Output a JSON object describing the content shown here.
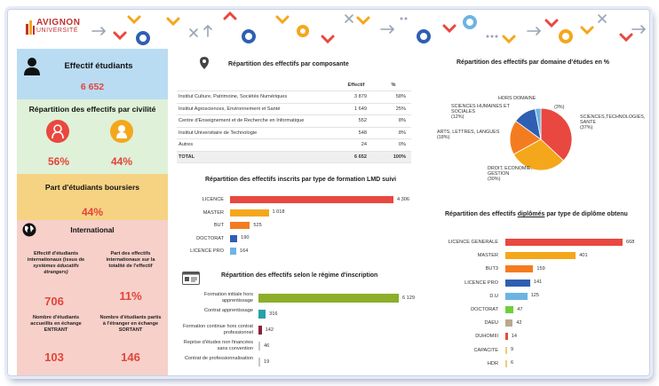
{
  "logo": {
    "name": "AVIGNON",
    "subname": "UNIVERSITÉ"
  },
  "left": {
    "effectif_title": "Effectif étudiants",
    "effectif_value": "6 652",
    "civilite_title": "Répartition des effectifs par civilité",
    "female_pct": "56%",
    "male_pct": "44%",
    "boursiers_title": "Part d'étudiants boursiers",
    "boursiers_pct": "44%",
    "international_title": "International",
    "intl_effectif_label_1": "Effectif d'étudiants internationaux (issus de",
    "intl_effectif_label_2": "systèmes éducatifs étrangers)",
    "intl_effectif_value": "706",
    "intl_part_label": "Part des effectifs internationaux sur la totalité de l'effectif",
    "intl_part_value": "11%",
    "entrant_label": "Nombre d'étudiants accueillis en échange ENTRANT",
    "entrant_value": "103",
    "sortant_label": "Nombre d'étudiants partis à l'étranger en échange SORTANT",
    "sortant_value": "146"
  },
  "composante": {
    "title": "Répartition des effectifs par composante",
    "headers": [
      "",
      "Effectif",
      "%"
    ],
    "rows": [
      [
        "Institut Culture, Patrimoine, Sociétés Numériques",
        "3 879",
        "58%"
      ],
      [
        "Institut Agrosciences, Environnement et Santé",
        "1 649",
        "25%"
      ],
      [
        "Centre d'Enseignement et de Recherche en Informatique",
        "552",
        "8%"
      ],
      [
        "Institut Universitaire de Technologie",
        "548",
        "8%"
      ],
      [
        "Autres",
        "24",
        "0%"
      ]
    ],
    "total": [
      "TOTAL",
      "6 652",
      "100%"
    ]
  },
  "lmd": {
    "title": "Répartition des effectifs inscrits par type de formation LMD suivi",
    "items": [
      {
        "label": "LICENCE",
        "value": 4306,
        "text": "4 306",
        "color": "#e8483f"
      },
      {
        "label": "MASTER",
        "value": 1018,
        "text": "1 018",
        "color": "#f4a71b"
      },
      {
        "label": "BUT",
        "value": 525,
        "text": "525",
        "color": "#f47c20"
      },
      {
        "label": "DOCTORAT",
        "value": 190,
        "text": "190",
        "color": "#2f5fb3"
      },
      {
        "label": "LICENCE PRO",
        "value": 164,
        "text": "164",
        "color": "#6cb4e4"
      }
    ]
  },
  "regime": {
    "title": "Répartition des effectifs selon le régime d'inscription",
    "items": [
      {
        "label": "Formation initiale hors apprentissage",
        "value": 6129,
        "text": "6 129",
        "color": "#8cae2a"
      },
      {
        "label": "Contrat apprentissage",
        "value": 316,
        "text": "316",
        "color": "#28a1a6"
      },
      {
        "label": "Formation continue hors contrat professionnel",
        "value": 142,
        "text": "142",
        "color": "#8e1f3c"
      },
      {
        "label": "Reprise d'études non financées sans convention",
        "value": 46,
        "text": "46",
        "color": "#c9c9c9"
      },
      {
        "label": "Contrat de professionnalisation",
        "value": 19,
        "text": "19",
        "color": "#c9c9c9"
      }
    ]
  },
  "domaine": {
    "title": "Répartition des effectifs par domaine d'études en %",
    "slices": [
      {
        "label": "SCIENCES,TECHNOLOGIES, SANTE",
        "pct": "(37%)",
        "value": 37,
        "color": "#e8483f"
      },
      {
        "label": "DROIT, ECONOMIE, GESTION",
        "pct": "(30%)",
        "value": 30,
        "color": "#f4a71b"
      },
      {
        "label": "ARTS, LETTRES, LANGUES",
        "pct": "(18%)",
        "value": 18,
        "color": "#f47c20"
      },
      {
        "label": "SCIENCES HUMAINES ET SOCIALES",
        "pct": "(12%)",
        "value": 12,
        "color": "#2f5fb3"
      },
      {
        "label": "HORS DOMAINE",
        "pct": "(3%)",
        "value": 3,
        "color": "#6cb4e4"
      }
    ]
  },
  "diplomes": {
    "title_1": "Répartition des effectifs ",
    "title_u": "diplômés",
    "title_2": " par type de diplôme obtenu",
    "items": [
      {
        "label": "LICENCE GENERALE",
        "value": 668,
        "text": "668",
        "color": "#e8483f"
      },
      {
        "label": "MASTER",
        "value": 401,
        "text": "401",
        "color": "#f4a71b"
      },
      {
        "label": "BUT3",
        "value": 159,
        "text": "159",
        "color": "#f47c20"
      },
      {
        "label": "LICENCE PRO",
        "value": 141,
        "text": "141",
        "color": "#2f5fb3"
      },
      {
        "label": "D.U",
        "value": 125,
        "text": "125",
        "color": "#6cb4e4"
      },
      {
        "label": "DOCTORAT",
        "value": 47,
        "text": "47",
        "color": "#6fcf3a"
      },
      {
        "label": "DAEU",
        "value": 42,
        "text": "42",
        "color": "#b9a98f"
      },
      {
        "label": "DUHOMIII",
        "value": 14,
        "text": "14",
        "color": "#e8483f"
      },
      {
        "label": "CAPACITE",
        "value": 9,
        "text": "9",
        "color": "#f4c97a"
      },
      {
        "label": "HDR",
        "value": 6,
        "text": "6",
        "color": "#f4c97a"
      }
    ]
  }
}
